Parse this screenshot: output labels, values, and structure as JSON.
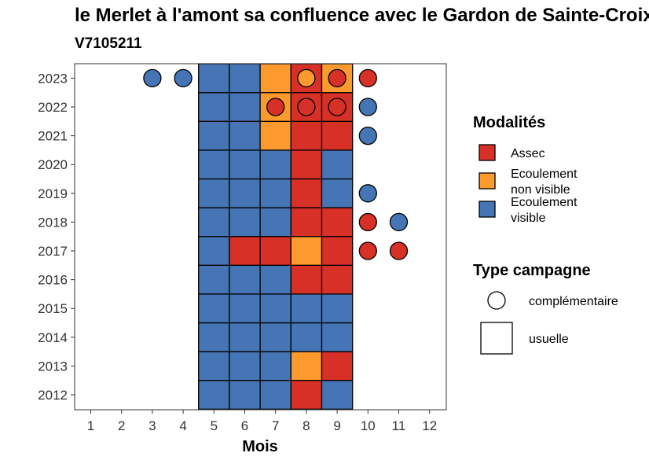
{
  "chart_data": {
    "type": "heatmap",
    "title": "le Merlet à l'amont sa confluence avec le Gardon de Sainte-Croix",
    "subtitle": "V7105211",
    "xlabel": "Mois",
    "ylabel": "",
    "x_ticks": [
      "1",
      "2",
      "3",
      "4",
      "5",
      "6",
      "7",
      "8",
      "9",
      "10",
      "11",
      "12"
    ],
    "y_ticks": [
      "2012",
      "2013",
      "2014",
      "2015",
      "2016",
      "2017",
      "2018",
      "2019",
      "2020",
      "2021",
      "2022",
      "2023"
    ],
    "grid": false,
    "legend_position": "right",
    "modalites": [
      {
        "key": "assec",
        "label": "Assec",
        "color": "#d73027"
      },
      {
        "key": "non_visible",
        "label": "Ecoulement non visible",
        "color": "#fd9a2d"
      },
      {
        "key": "visible",
        "label": "Ecoulement visible",
        "color": "#4575b4"
      }
    ],
    "campaign_types": [
      {
        "key": "complementaire",
        "label": "complémentaire",
        "shape": "circle"
      },
      {
        "key": "usuelle",
        "label": "usuelle",
        "shape": "square"
      }
    ],
    "usuelle": [
      {
        "year": 2012,
        "months": [
          5,
          6,
          7,
          8,
          9
        ],
        "values": [
          "visible",
          "visible",
          "visible",
          "assec",
          "visible"
        ]
      },
      {
        "year": 2013,
        "months": [
          5,
          6,
          7,
          8,
          9
        ],
        "values": [
          "visible",
          "visible",
          "visible",
          "non_visible",
          "assec"
        ]
      },
      {
        "year": 2014,
        "months": [
          5,
          6,
          7,
          8,
          9
        ],
        "values": [
          "visible",
          "visible",
          "visible",
          "visible",
          "visible"
        ]
      },
      {
        "year": 2015,
        "months": [
          5,
          6,
          7,
          8,
          9
        ],
        "values": [
          "visible",
          "visible",
          "visible",
          "visible",
          "visible"
        ]
      },
      {
        "year": 2016,
        "months": [
          5,
          6,
          7,
          8,
          9
        ],
        "values": [
          "visible",
          "visible",
          "visible",
          "assec",
          "assec"
        ]
      },
      {
        "year": 2017,
        "months": [
          5,
          6,
          7,
          8,
          9
        ],
        "values": [
          "visible",
          "assec",
          "assec",
          "non_visible",
          "assec"
        ]
      },
      {
        "year": 2018,
        "months": [
          5,
          6,
          7,
          8,
          9
        ],
        "values": [
          "visible",
          "visible",
          "visible",
          "assec",
          "assec"
        ]
      },
      {
        "year": 2019,
        "months": [
          5,
          6,
          7,
          8,
          9
        ],
        "values": [
          "visible",
          "visible",
          "visible",
          "assec",
          "visible"
        ]
      },
      {
        "year": 2020,
        "months": [
          5,
          6,
          7,
          8,
          9
        ],
        "values": [
          "visible",
          "visible",
          "visible",
          "assec",
          "visible"
        ]
      },
      {
        "year": 2021,
        "months": [
          5,
          6,
          7,
          8,
          9
        ],
        "values": [
          "visible",
          "visible",
          "non_visible",
          "assec",
          "assec"
        ]
      },
      {
        "year": 2022,
        "months": [
          5,
          6,
          7,
          8,
          9
        ],
        "values": [
          "visible",
          "visible",
          "non_visible",
          "assec",
          "assec"
        ]
      },
      {
        "year": 2023,
        "months": [
          5,
          6,
          7,
          8,
          9
        ],
        "values": [
          "visible",
          "visible",
          "non_visible",
          "assec",
          "non_visible"
        ]
      }
    ],
    "complementaire": [
      {
        "year": 2023,
        "month": 3,
        "value": "visible"
      },
      {
        "year": 2023,
        "month": 4,
        "value": "visible"
      },
      {
        "year": 2023,
        "month": 8,
        "value": "non_visible"
      },
      {
        "year": 2023,
        "month": 9,
        "value": "assec"
      },
      {
        "year": 2023,
        "month": 10,
        "value": "assec"
      },
      {
        "year": 2022,
        "month": 7,
        "value": "assec"
      },
      {
        "year": 2022,
        "month": 8,
        "value": "assec"
      },
      {
        "year": 2022,
        "month": 9,
        "value": "assec"
      },
      {
        "year": 2022,
        "month": 10,
        "value": "visible"
      },
      {
        "year": 2021,
        "month": 10,
        "value": "visible"
      },
      {
        "year": 2019,
        "month": 10,
        "value": "visible"
      },
      {
        "year": 2018,
        "month": 10,
        "value": "assec"
      },
      {
        "year": 2018,
        "month": 11,
        "value": "visible"
      },
      {
        "year": 2017,
        "month": 10,
        "value": "assec"
      },
      {
        "year": 2017,
        "month": 11,
        "value": "assec"
      }
    ],
    "legend": {
      "modalites_title": "Modalités",
      "type_title": "Type campagne"
    }
  }
}
